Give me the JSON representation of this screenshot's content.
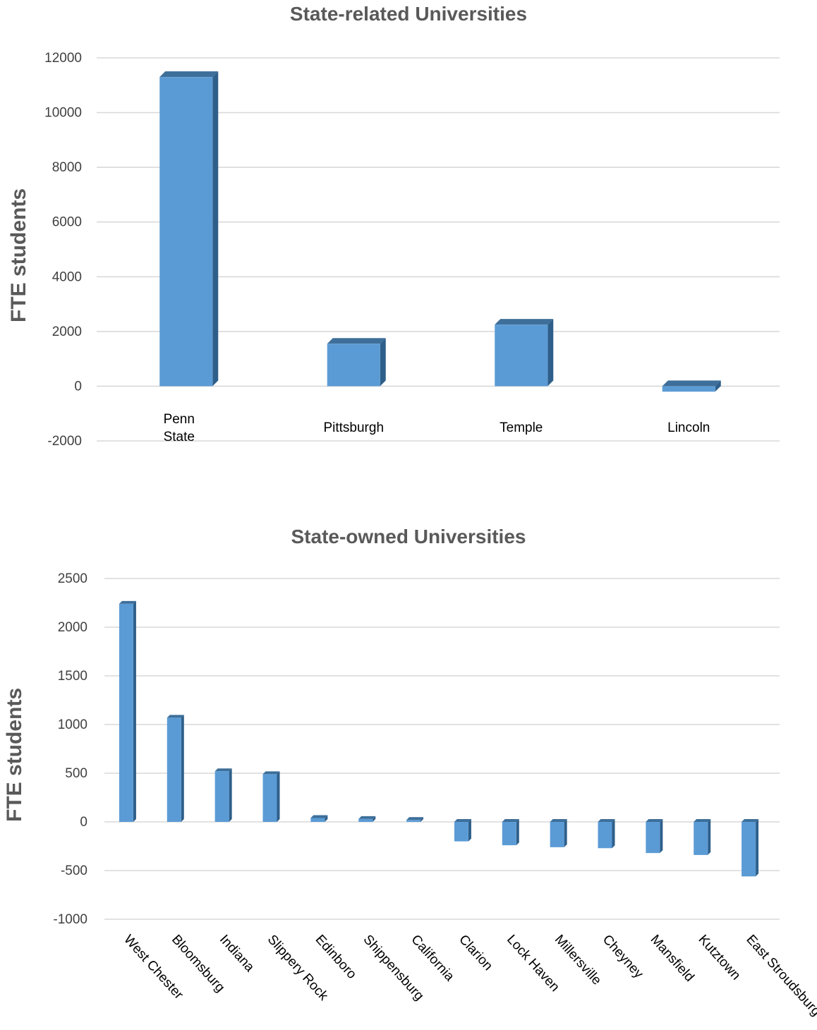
{
  "chart_data": [
    {
      "type": "bar",
      "title": "State-related Universities",
      "ylabel": "FTE  students",
      "xlabel": "",
      "categories": [
        "Penn State",
        "Pittsburgh",
        "Temple",
        "Lincoln"
      ],
      "category_lines": [
        [
          "Penn",
          "State"
        ],
        [
          "Pittsburgh"
        ],
        [
          "Temple"
        ],
        [
          "Lincoln"
        ]
      ],
      "values": [
        11300,
        1550,
        2250,
        -200
      ],
      "ylim": [
        -2000,
        12000
      ],
      "yticks": [
        -2000,
        0,
        2000,
        4000,
        6000,
        8000,
        10000,
        12000
      ],
      "grid": true,
      "legend": "none",
      "style": "3d-column",
      "colors": {
        "bar": "#5b9bd5",
        "top": "#3e6f9a",
        "side": "#2e5f8a",
        "grid": "#d9d9d9"
      }
    },
    {
      "type": "bar",
      "title": "State-owned Universities",
      "ylabel": "FTE students",
      "xlabel": "",
      "categories": [
        "West Chester",
        "Bloomsburg",
        "Indiana",
        "Slippery Rock",
        "Edinboro",
        "Shippensburg",
        "California",
        "Clarion",
        "Lock Haven",
        "Millersville",
        "Cheyney",
        "Mansfield",
        "Kutztown",
        "East Stroudsburg"
      ],
      "values": [
        2240,
        1070,
        520,
        490,
        40,
        30,
        20,
        -200,
        -240,
        -260,
        -270,
        -320,
        -340,
        -560
      ],
      "ylim": [
        -1000,
        2500
      ],
      "yticks": [
        -1000,
        -500,
        0,
        500,
        1000,
        1500,
        2000,
        2500
      ],
      "grid": true,
      "legend": "none",
      "style": "3d-column",
      "colors": {
        "bar": "#5b9bd5",
        "top": "#3e6f9a",
        "side": "#2e5f8a",
        "grid": "#d9d9d9"
      }
    }
  ]
}
